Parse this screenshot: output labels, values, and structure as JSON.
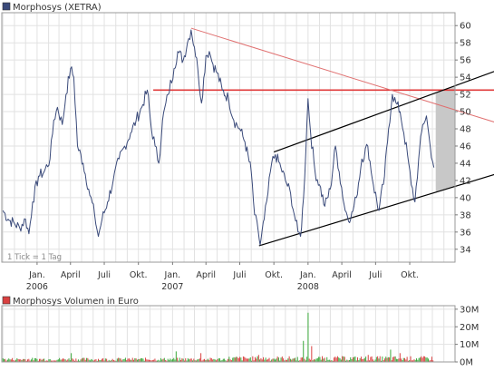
{
  "chart_data": [
    {
      "type": "line",
      "title": "Morphosys (XETRA)",
      "legend_color": "#3a4a7a",
      "tick_note": "1 Tick = 1 Tag",
      "y_ticks": [
        34,
        36,
        38,
        40,
        42,
        44,
        46,
        48,
        50,
        52,
        54,
        56,
        58,
        60
      ],
      "ylim": [
        32.5,
        61.5
      ],
      "x_ticks": [
        {
          "label": "Jan.",
          "sub": "2006",
          "date": "2006-01-01"
        },
        {
          "label": "April",
          "sub": "",
          "date": "2006-04-01"
        },
        {
          "label": "Juli",
          "sub": "",
          "date": "2006-07-01"
        },
        {
          "label": "Okt.",
          "sub": "",
          "date": "2006-10-01"
        },
        {
          "label": "Jan.",
          "sub": "2007",
          "date": "2007-01-01"
        },
        {
          "label": "April",
          "sub": "",
          "date": "2007-04-01"
        },
        {
          "label": "Juli",
          "sub": "",
          "date": "2007-07-01"
        },
        {
          "label": "Okt.",
          "sub": "",
          "date": "2007-10-01"
        },
        {
          "label": "Jan.",
          "sub": "2008",
          "date": "2008-01-01"
        },
        {
          "label": "April",
          "sub": "",
          "date": "2008-04-01"
        },
        {
          "label": "Juli",
          "sub": "",
          "date": "2008-07-01"
        },
        {
          "label": "Okt.",
          "sub": "",
          "date": "2008-10-01"
        }
      ],
      "xlim": [
        "2005-09-28",
        "2009-01-31"
      ],
      "grid": true,
      "series": [
        {
          "color": "#3a4a7a",
          "points": [
            [
              "2005-10-01",
              38.5
            ],
            [
              "2005-10-15",
              37.5
            ],
            [
              "2005-11-01",
              37.0
            ],
            [
              "2005-11-15",
              36.5
            ],
            [
              "2005-12-01",
              37.5
            ],
            [
              "2005-12-10",
              35.8
            ],
            [
              "2005-12-20",
              39.5
            ],
            [
              "2006-01-05",
              42.5
            ],
            [
              "2006-01-20",
              43.0
            ],
            [
              "2006-02-05",
              44.5
            ],
            [
              "2006-02-15",
              49.0
            ],
            [
              "2006-02-25",
              50.5
            ],
            [
              "2006-03-10",
              48.5
            ],
            [
              "2006-03-20",
              52.0
            ],
            [
              "2006-04-01",
              55.0
            ],
            [
              "2006-04-10",
              54.0
            ],
            [
              "2006-04-20",
              46.0
            ],
            [
              "2006-05-05",
              44.0
            ],
            [
              "2006-05-20",
              41.0
            ],
            [
              "2006-06-05",
              38.0
            ],
            [
              "2006-06-15",
              35.5
            ],
            [
              "2006-06-25",
              37.5
            ],
            [
              "2006-07-10",
              39.5
            ],
            [
              "2006-07-25",
              42.0
            ],
            [
              "2006-08-10",
              44.5
            ],
            [
              "2006-08-25",
              46.0
            ],
            [
              "2006-09-10",
              47.5
            ],
            [
              "2006-09-25",
              49.0
            ],
            [
              "2006-10-10",
              50.5
            ],
            [
              "2006-10-25",
              52.5
            ],
            [
              "2006-11-05",
              48.0
            ],
            [
              "2006-11-15",
              46.0
            ],
            [
              "2006-11-25",
              44.0
            ],
            [
              "2006-12-05",
              49.0
            ],
            [
              "2006-12-20",
              52.0
            ],
            [
              "2007-01-05",
              55.0
            ],
            [
              "2007-01-15",
              57.0
            ],
            [
              "2007-01-30",
              56.0
            ],
            [
              "2007-02-10",
              58.0
            ],
            [
              "2007-02-20",
              59.5
            ],
            [
              "2007-03-01",
              57.5
            ],
            [
              "2007-03-10",
              55.0
            ],
            [
              "2007-03-20",
              51.0
            ],
            [
              "2007-04-01",
              56.5
            ],
            [
              "2007-04-10",
              57.0
            ],
            [
              "2007-04-20",
              55.5
            ],
            [
              "2007-05-01",
              54.5
            ],
            [
              "2007-05-15",
              52.5
            ],
            [
              "2007-06-01",
              51.5
            ],
            [
              "2007-06-15",
              49.0
            ],
            [
              "2007-07-01",
              48.0
            ],
            [
              "2007-07-15",
              46.5
            ],
            [
              "2007-08-01",
              43.0
            ],
            [
              "2007-08-10",
              38.0
            ],
            [
              "2007-08-20",
              36.0
            ],
            [
              "2007-08-25",
              34.5
            ],
            [
              "2007-09-05",
              37.5
            ],
            [
              "2007-09-15",
              40.5
            ],
            [
              "2007-09-25",
              44.0
            ],
            [
              "2007-10-05",
              45.0
            ],
            [
              "2007-10-20",
              43.5
            ],
            [
              "2007-11-01",
              42.0
            ],
            [
              "2007-11-15",
              40.5
            ],
            [
              "2007-11-25",
              38.0
            ],
            [
              "2007-12-05",
              36.0
            ],
            [
              "2007-12-12",
              35.5
            ],
            [
              "2007-12-20",
              40.0
            ],
            [
              "2008-01-01",
              51.5
            ],
            [
              "2008-01-08",
              47.5
            ],
            [
              "2008-01-20",
              43.0
            ],
            [
              "2008-02-01",
              41.5
            ],
            [
              "2008-02-15",
              39.0
            ],
            [
              "2008-03-01",
              41.0
            ],
            [
              "2008-03-15",
              46.0
            ],
            [
              "2008-03-25",
              43.0
            ],
            [
              "2008-04-10",
              38.5
            ],
            [
              "2008-04-25",
              37.5
            ],
            [
              "2008-05-10",
              40.0
            ],
            [
              "2008-05-25",
              44.5
            ],
            [
              "2008-06-10",
              46.0
            ],
            [
              "2008-06-25",
              41.5
            ],
            [
              "2008-07-10",
              38.5
            ],
            [
              "2008-07-25",
              42.5
            ],
            [
              "2008-08-05",
              48.0
            ],
            [
              "2008-08-15",
              52.0
            ],
            [
              "2008-08-25",
              51.0
            ],
            [
              "2008-09-05",
              50.0
            ],
            [
              "2008-09-15",
              47.5
            ],
            [
              "2008-09-25",
              45.0
            ],
            [
              "2008-10-05",
              41.5
            ],
            [
              "2008-10-15",
              39.5
            ],
            [
              "2008-10-25",
              44.5
            ],
            [
              "2008-11-05",
              48.5
            ],
            [
              "2008-11-15",
              49.5
            ],
            [
              "2008-11-25",
              46.0
            ],
            [
              "2008-12-05",
              43.5
            ]
          ]
        }
      ],
      "trendlines": [
        {
          "color": "#e03a3a",
          "width": 1.6,
          "from": [
            "2006-11-10",
            52.5
          ],
          "to": [
            "2009-01-31",
            52.5
          ]
        },
        {
          "color": "#e07070",
          "width": 1.0,
          "from": [
            "2007-02-20",
            59.7
          ],
          "to": [
            "2009-01-31",
            50.2
          ]
        },
        {
          "color": "#000000",
          "width": 1.2,
          "from": [
            "2007-08-22",
            34.4
          ],
          "to": [
            "2009-01-31",
            41.3
          ]
        },
        {
          "color": "#000000",
          "width": 1.2,
          "from": [
            "2007-10-01",
            45.3
          ],
          "to": [
            "2009-01-31",
            53.0
          ]
        }
      ],
      "channel_fill": {
        "color": "#c8c8c8",
        "from_date": "2008-12-10"
      }
    },
    {
      "type": "bar",
      "title": "Morphosys Volumen in Euro",
      "legend_color": "#d94040",
      "y_ticks": [
        {
          "value": 0,
          "label": "0M"
        },
        {
          "value": 10,
          "label": "10M"
        },
        {
          "value": 20,
          "label": "20M"
        },
        {
          "value": 30,
          "label": "30M"
        }
      ],
      "ylim": [
        0,
        32
      ],
      "unit": "M EUR",
      "up_color": "#3aa83a",
      "down_color": "#d94040",
      "spikes": [
        {
          "date": "2006-02-20",
          "value": 7,
          "dir": "down"
        },
        {
          "date": "2006-04-05",
          "value": 5,
          "dir": "up"
        },
        {
          "date": "2006-06-15",
          "value": 3,
          "dir": "down"
        },
        {
          "date": "2007-01-10",
          "value": 6,
          "dir": "up"
        },
        {
          "date": "2007-03-20",
          "value": 5,
          "dir": "down"
        },
        {
          "date": "2007-08-20",
          "value": 4,
          "dir": "down"
        },
        {
          "date": "2007-12-20",
          "value": 12,
          "dir": "up"
        },
        {
          "date": "2008-01-02",
          "value": 28,
          "dir": "up"
        },
        {
          "date": "2008-01-10",
          "value": 9,
          "dir": "down"
        },
        {
          "date": "2008-06-10",
          "value": 4,
          "dir": "down"
        },
        {
          "date": "2008-08-10",
          "value": 7,
          "dir": "up"
        },
        {
          "date": "2008-09-05",
          "value": 5,
          "dir": "down"
        }
      ]
    }
  ]
}
